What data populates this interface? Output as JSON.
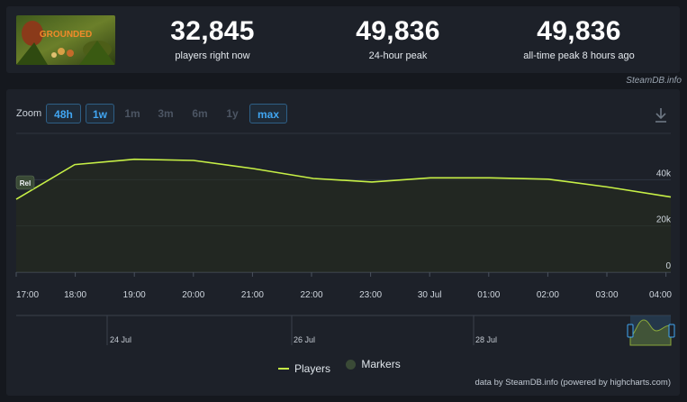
{
  "header": {
    "game_thumbnail_text": "GROUNDED",
    "stats": [
      {
        "value": "32,845",
        "label": "players right now"
      },
      {
        "value": "49,836",
        "label": "24-hour peak"
      },
      {
        "value": "49,836",
        "label": "all-time peak 8 hours ago"
      }
    ]
  },
  "credit_top": "SteamDB.info",
  "chart": {
    "zoom_label": "Zoom",
    "zoom_buttons": [
      {
        "label": "48h",
        "active": true
      },
      {
        "label": "1w",
        "active": true
      },
      {
        "label": "1m",
        "active": false
      },
      {
        "label": "3m",
        "active": false
      },
      {
        "label": "6m",
        "active": false
      },
      {
        "label": "1y",
        "active": false
      },
      {
        "label": "max",
        "active": true
      }
    ],
    "download_icon": "download-icon",
    "marker_label": "Rel",
    "y_tick_labels": [
      "0",
      "20k",
      "40k"
    ],
    "x_tick_labels": [
      "17:00",
      "18:00",
      "19:00",
      "20:00",
      "21:00",
      "22:00",
      "23:00",
      "30 Jul",
      "01:00",
      "02:00",
      "03:00",
      "04:00"
    ],
    "navigator_labels": [
      "24 Jul",
      "26 Jul",
      "28 Jul"
    ],
    "legend": [
      {
        "name": "Players",
        "icon": "line",
        "color": "#c7f046"
      },
      {
        "name": "Markers",
        "icon": "dot",
        "color": "#3a4a36"
      }
    ],
    "credit": "data by SteamDB.info (powered by highcharts.com)"
  },
  "chart_data": {
    "type": "line",
    "x": [
      "16:40",
      "17:40",
      "18:50",
      "20:00",
      "21:00",
      "22:00",
      "23:00",
      "30 Jul 00:00",
      "01:00",
      "02:00",
      "03:00",
      "03:45"
    ],
    "series": [
      {
        "name": "Players",
        "color": "#c7f046",
        "values": [
          31500,
          46500,
          48800,
          48300,
          44800,
          40500,
          39000,
          40800,
          40800,
          40200,
          36800,
          32500
        ]
      }
    ],
    "ylim": [
      0,
      60000
    ],
    "y_ticks": [
      0,
      20000,
      40000
    ],
    "grid": true,
    "legend_position": "bottom-center"
  }
}
